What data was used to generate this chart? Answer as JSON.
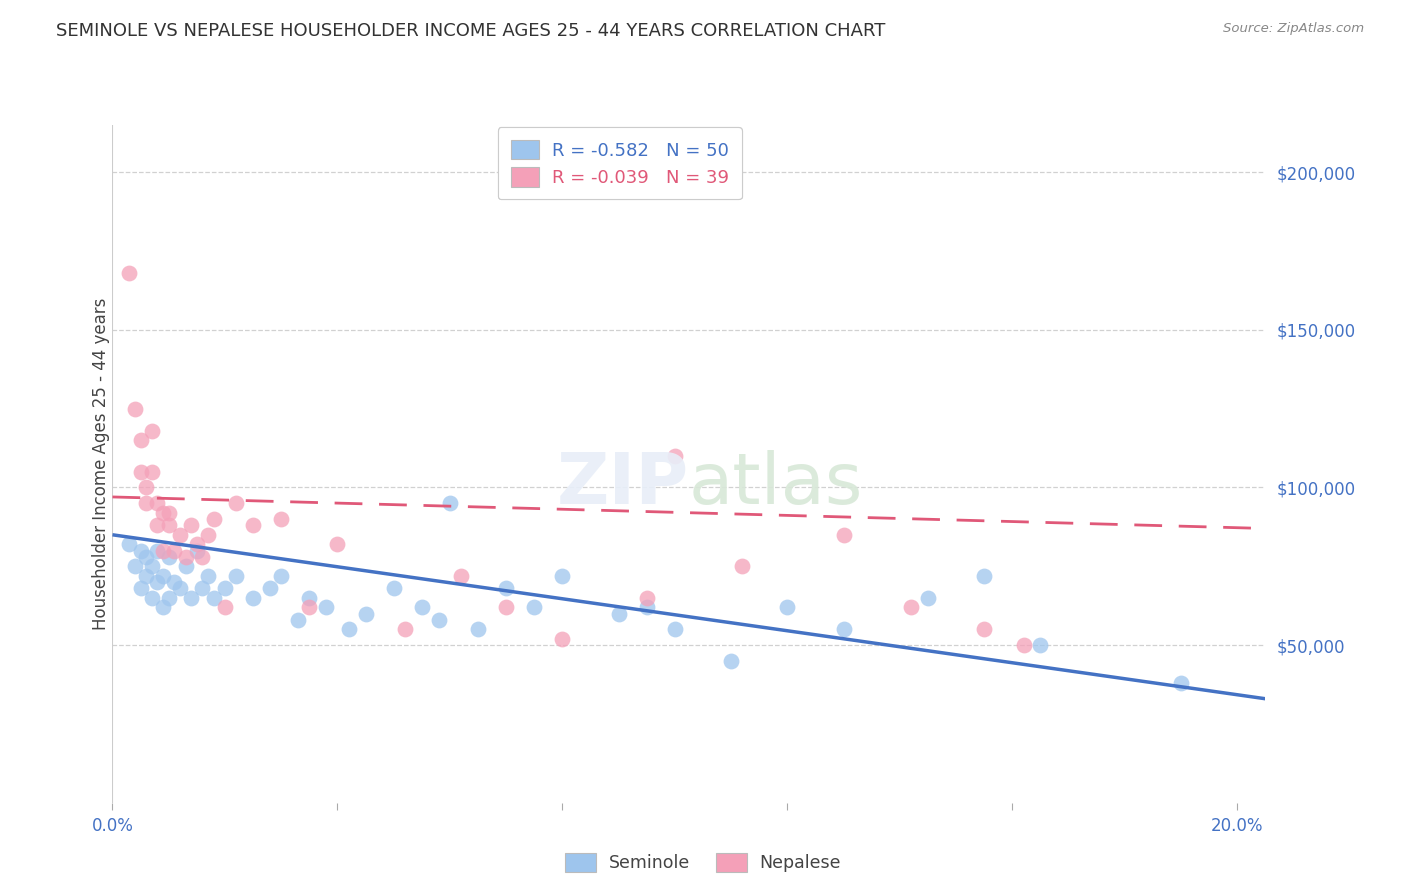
{
  "title": "SEMINOLE VS NEPALESE HOUSEHOLDER INCOME AGES 25 - 44 YEARS CORRELATION CHART",
  "source": "Source: ZipAtlas.com",
  "ylabel": "Householder Income Ages 25 - 44 years",
  "ytick_positions": [
    50000,
    100000,
    150000,
    200000
  ],
  "ytick_labels": [
    "$50,000",
    "$100,000",
    "$150,000",
    "$200,000"
  ],
  "ylim": [
    0,
    215000
  ],
  "xlim": [
    0.0,
    0.205
  ],
  "background_color": "#ffffff",
  "grid_color": "#cccccc",
  "seminole_color": "#9ec5ed",
  "nepalese_color": "#f4a0b8",
  "seminole_line_color": "#4472c4",
  "nepalese_line_color": "#e05878",
  "legend_seminole_R": "-0.582",
  "legend_seminole_N": "50",
  "legend_nepalese_R": "-0.039",
  "legend_nepalese_N": "39",
  "seminole_x": [
    0.003,
    0.004,
    0.005,
    0.005,
    0.006,
    0.006,
    0.007,
    0.007,
    0.008,
    0.008,
    0.009,
    0.009,
    0.01,
    0.01,
    0.011,
    0.012,
    0.013,
    0.014,
    0.015,
    0.016,
    0.017,
    0.018,
    0.02,
    0.022,
    0.025,
    0.028,
    0.03,
    0.033,
    0.035,
    0.038,
    0.042,
    0.045,
    0.05,
    0.055,
    0.058,
    0.06,
    0.065,
    0.07,
    0.075,
    0.08,
    0.09,
    0.095,
    0.1,
    0.11,
    0.12,
    0.13,
    0.145,
    0.155,
    0.165,
    0.19
  ],
  "seminole_y": [
    82000,
    75000,
    80000,
    68000,
    78000,
    72000,
    75000,
    65000,
    80000,
    70000,
    72000,
    62000,
    78000,
    65000,
    70000,
    68000,
    75000,
    65000,
    80000,
    68000,
    72000,
    65000,
    68000,
    72000,
    65000,
    68000,
    72000,
    58000,
    65000,
    62000,
    55000,
    60000,
    68000,
    62000,
    58000,
    95000,
    55000,
    68000,
    62000,
    72000,
    60000,
    62000,
    55000,
    45000,
    62000,
    55000,
    65000,
    72000,
    50000,
    38000
  ],
  "nepalese_x": [
    0.003,
    0.004,
    0.005,
    0.005,
    0.006,
    0.006,
    0.007,
    0.007,
    0.008,
    0.008,
    0.009,
    0.009,
    0.01,
    0.01,
    0.011,
    0.012,
    0.013,
    0.014,
    0.015,
    0.016,
    0.017,
    0.018,
    0.02,
    0.022,
    0.025,
    0.03,
    0.035,
    0.04,
    0.052,
    0.062,
    0.07,
    0.08,
    0.095,
    0.1,
    0.112,
    0.13,
    0.142,
    0.155,
    0.162
  ],
  "nepalese_y": [
    168000,
    125000,
    105000,
    115000,
    100000,
    95000,
    118000,
    105000,
    95000,
    88000,
    92000,
    80000,
    88000,
    92000,
    80000,
    85000,
    78000,
    88000,
    82000,
    78000,
    85000,
    90000,
    62000,
    95000,
    88000,
    90000,
    62000,
    82000,
    55000,
    72000,
    62000,
    52000,
    65000,
    110000,
    75000,
    85000,
    62000,
    55000,
    50000
  ],
  "seminole_line_x0": 0.0,
  "seminole_line_x1": 0.205,
  "seminole_line_y0": 85000,
  "seminole_line_y1": 33000,
  "nepalese_line_x0": 0.0,
  "nepalese_line_x1": 0.205,
  "nepalese_line_y0": 97000,
  "nepalese_line_y1": 87000
}
